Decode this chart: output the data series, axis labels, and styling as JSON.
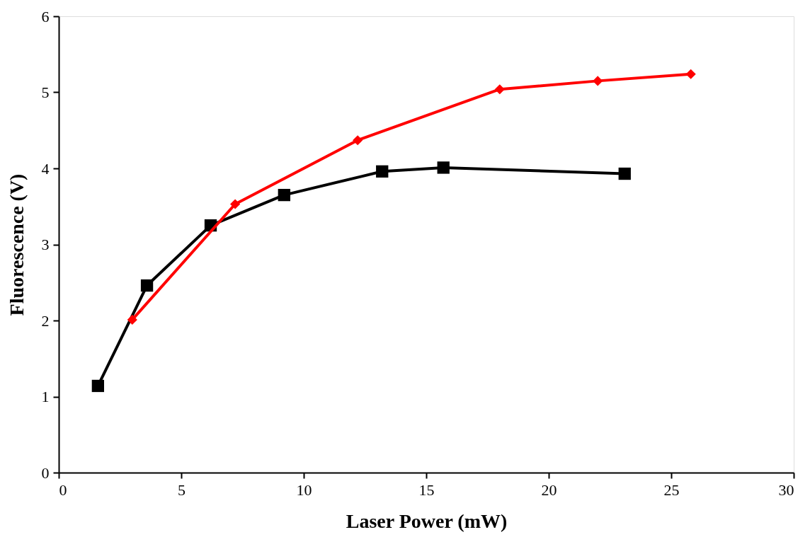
{
  "chart_data": {
    "type": "line",
    "xlabel": "Laser Power (mW)",
    "ylabel": "Fluorescence (V)",
    "xlim": [
      0,
      30
    ],
    "xticks": [
      0,
      5,
      10,
      15,
      20,
      25,
      30
    ],
    "ylim": [
      0,
      6
    ],
    "yticks": [
      0,
      1,
      2,
      3,
      4,
      5,
      6
    ],
    "grid": false,
    "line_style": "solid",
    "series": [
      {
        "color": "#000000",
        "marker": "square",
        "x": [
          1.6,
          3.6,
          6.2,
          9.2,
          13.2,
          15.7,
          23.1
        ],
        "values": [
          1.14,
          2.46,
          3.25,
          3.65,
          3.96,
          4.01,
          3.93
        ]
      },
      {
        "color": "#ff0000",
        "marker": "diamond",
        "x": [
          3.0,
          7.2,
          12.2,
          18.0,
          22.0,
          25.8
        ],
        "values": [
          2.01,
          3.53,
          4.37,
          5.04,
          5.15,
          5.24
        ]
      }
    ]
  }
}
